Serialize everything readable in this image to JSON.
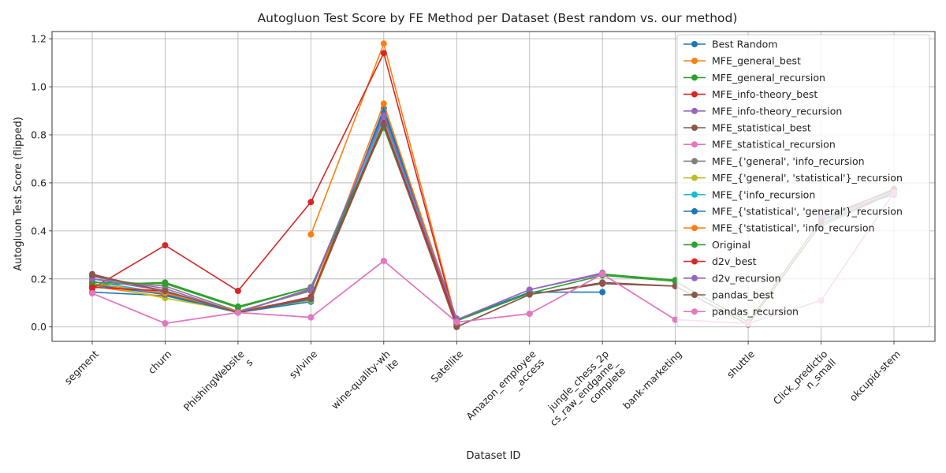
{
  "chart_data": {
    "type": "line",
    "title": "Autogluon Test Score by FE Method per Dataset (Best random vs. our method)",
    "xlabel": "Dataset ID",
    "ylabel": "Autogluon Test Score (flipped)",
    "ylim": [
      -0.06,
      1.23
    ],
    "yticks": [
      "0.0",
      "0.2",
      "0.4",
      "0.6",
      "0.8",
      "1.0",
      "1.2"
    ],
    "grid": true,
    "legend_position": "upper right",
    "categories": [
      [
        "segment"
      ],
      [
        "churn"
      ],
      [
        "PhishingWebsite",
        "s"
      ],
      [
        "sylvine"
      ],
      [
        "wine-quality-wh",
        "ite"
      ],
      [
        "Satellite"
      ],
      [
        "Amazon_employee",
        "_access"
      ],
      [
        "jungle_chess_2p",
        "cs_raw_endgame_",
        "complete"
      ],
      [
        "bank-marketing"
      ],
      [
        "shuttle"
      ],
      [
        "Click_predictio",
        "n_small"
      ],
      [
        "okcupid-stem"
      ]
    ],
    "series": [
      {
        "name": "Best Random",
        "color": "#1f77b4",
        "values": [
          0.145,
          0.13,
          0.06,
          0.105,
          0.91,
          0.03,
          0.145,
          0.145,
          null,
          null,
          null,
          null
        ]
      },
      {
        "name": "MFE_general_best",
        "color": "#ff7f0e",
        "values": [
          0.17,
          0.125,
          null,
          0.385,
          1.18,
          0.02,
          null,
          null,
          null,
          null,
          null,
          null
        ]
      },
      {
        "name": "MFE_general_recursion",
        "color": "#2ca02c",
        "values": [
          0.175,
          0.185,
          0.085,
          0.165,
          0.83,
          0.025,
          null,
          0.22,
          0.195,
          null,
          null,
          null
        ]
      },
      {
        "name": "MFE_info-theory_best",
        "color": "#d62728",
        "values": [
          0.16,
          0.34,
          0.15,
          0.52,
          1.14,
          0.01,
          null,
          null,
          null,
          null,
          null,
          null
        ]
      },
      {
        "name": "MFE_info-theory_recursion",
        "color": "#9467bd",
        "values": [
          0.21,
          0.16,
          0.06,
          0.155,
          0.89,
          0.03,
          0.155,
          0.225,
          null,
          null,
          null,
          null
        ]
      },
      {
        "name": "MFE_statistical_best",
        "color": "#8c564b",
        "values": [
          0.22,
          0.145,
          0.06,
          0.12,
          0.85,
          0.0,
          0.135,
          0.185,
          0.17,
          0.01,
          null,
          null
        ]
      },
      {
        "name": "MFE_statistical_recursion",
        "color": "#e377c2",
        "values": [
          0.14,
          0.015,
          0.06,
          0.04,
          0.275,
          0.02,
          0.055,
          0.22,
          0.03,
          0.015,
          0.11,
          0.56
        ]
      },
      {
        "name": "MFE_{'general', 'info_recursion",
        "color": "#7f7f7f",
        "values": [
          0.2,
          0.17,
          0.065,
          0.15,
          0.88,
          0.035,
          null,
          null,
          null,
          null,
          0.42,
          0.56
        ]
      },
      {
        "name": "MFE_{'general', 'statistical'}_recursion",
        "color": "#bcbd22",
        "values": [
          0.18,
          0.12,
          0.065,
          0.11,
          0.86,
          0.02,
          null,
          null,
          null,
          null,
          0.43,
          0.565
        ]
      },
      {
        "name": "MFE_{'info_recursion",
        "color": "#17becf",
        "values": [
          0.19,
          0.14,
          0.065,
          0.12,
          0.87,
          0.02,
          null,
          null,
          null,
          null,
          0.44,
          0.565
        ]
      },
      {
        "name": "MFE_{'statistical', 'general'}_recursion",
        "color": "#1f77b4",
        "values": [
          0.175,
          0.135,
          0.06,
          0.115,
          0.9,
          0.025,
          null,
          null,
          null,
          null,
          null,
          null
        ]
      },
      {
        "name": "MFE_{'statistical', 'info_recursion",
        "color": "#ff7f0e",
        "values": [
          0.18,
          0.14,
          0.065,
          0.12,
          0.93,
          0.02,
          null,
          null,
          null,
          null,
          null,
          null
        ]
      },
      {
        "name": "Original",
        "color": "#2ca02c",
        "values": [
          0.185,
          0.18,
          0.08,
          0.165,
          0.84,
          0.025,
          0.14,
          0.215,
          0.19,
          0.02,
          0.445,
          0.575
        ]
      },
      {
        "name": "d2v_best",
        "color": "#d62728",
        "values": [
          0.165,
          0.15,
          0.06,
          0.125,
          0.85,
          0.015,
          null,
          null,
          null,
          null,
          0.455,
          0.57
        ]
      },
      {
        "name": "d2v_recursion",
        "color": "#9467bd",
        "values": [
          0.2,
          0.15,
          0.06,
          0.16,
          0.88,
          0.03,
          0.155,
          0.22,
          null,
          null,
          0.46,
          0.55
        ]
      },
      {
        "name": "pandas_best",
        "color": "#8c564b",
        "values": [
          0.215,
          0.15,
          0.06,
          0.12,
          0.84,
          0.0,
          0.135,
          0.18,
          0.17,
          0.01,
          0.43,
          0.56
        ]
      },
      {
        "name": "pandas_recursion",
        "color": "#e377c2",
        "values": [
          0.14,
          0.015,
          0.06,
          0.04,
          0.275,
          0.02,
          0.055,
          0.22,
          0.03,
          0.015,
          0.11,
          0.56
        ]
      }
    ]
  }
}
